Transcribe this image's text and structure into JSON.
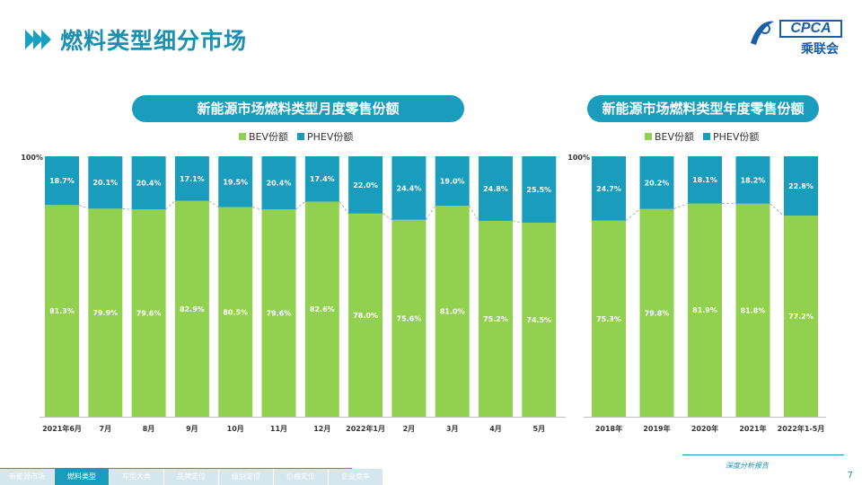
{
  "page": {
    "title": "燃料类型细分市场",
    "page_number": "7",
    "footer_tag": "深度分析报告"
  },
  "logo": {
    "main": "CPCA",
    "sub": "乘联会"
  },
  "colors": {
    "accent": "#1a9cbc",
    "bev": "#92d050",
    "phev": "#1a9cbc",
    "title": "#1a8fb0"
  },
  "nav": [
    {
      "label": "新能源市场",
      "active": false
    },
    {
      "label": "燃料类型",
      "active": true
    },
    {
      "label": "车型大类",
      "active": false
    },
    {
      "label": "品牌定位",
      "active": false
    },
    {
      "label": "级别定位",
      "active": false
    },
    {
      "label": "价格定位",
      "active": false
    },
    {
      "label": "企业竞争",
      "active": false
    }
  ],
  "chart_data": [
    {
      "type": "bar",
      "stacked": true,
      "title": "新能源市场燃料类型月度零售份额",
      "ytick_top": "100%",
      "legend": [
        "BEV份额",
        "PHEV份额"
      ],
      "categories": [
        "2021年6月",
        "7月",
        "8月",
        "9月",
        "10月",
        "11月",
        "12月",
        "2022年1月",
        "2月",
        "3月",
        "4月",
        "5月"
      ],
      "series": [
        {
          "name": "BEV份额",
          "values": [
            81.3,
            79.9,
            79.6,
            82.9,
            80.5,
            79.6,
            82.6,
            78.0,
            75.6,
            81.0,
            75.2,
            74.5
          ],
          "labels": [
            "81.3%",
            "79.9%",
            "79.6%",
            "82.9%",
            "80.5%",
            "79.6%",
            "82.6%",
            "78.0%",
            "75.6%",
            "81.0%",
            "75.2%",
            "74.5%"
          ]
        },
        {
          "name": "PHEV份额",
          "values": [
            18.7,
            20.1,
            20.4,
            17.1,
            19.5,
            20.4,
            17.4,
            22.0,
            24.4,
            19.0,
            24.8,
            25.5
          ],
          "labels": [
            "18.7%",
            "20.1%",
            "20.4%",
            "17.1%",
            "19.5%",
            "20.4%",
            "17.4%",
            "22.0%",
            "24.4%",
            "19.0%",
            "24.8%",
            "25.5%"
          ]
        }
      ],
      "ylim": [
        0,
        100
      ]
    },
    {
      "type": "bar",
      "stacked": true,
      "title": "新能源市场燃料类型年度零售份额",
      "ytick_top": "100%",
      "legend": [
        "BEV份额",
        "PHEV份额"
      ],
      "categories": [
        "2018年",
        "2019年",
        "2020年",
        "2021年",
        "2022年1-5月"
      ],
      "series": [
        {
          "name": "BEV份额",
          "values": [
            75.3,
            79.8,
            81.9,
            81.8,
            77.2
          ],
          "labels": [
            "75.3%",
            "79.8%",
            "81.9%",
            "81.8%",
            "77.2%"
          ]
        },
        {
          "name": "PHEV份额",
          "values": [
            24.7,
            20.2,
            18.1,
            18.2,
            22.8
          ],
          "labels": [
            "24.7%",
            "20.2%",
            "18.1%",
            "18.2%",
            "22.8%"
          ]
        }
      ],
      "ylim": [
        0,
        100
      ]
    }
  ]
}
